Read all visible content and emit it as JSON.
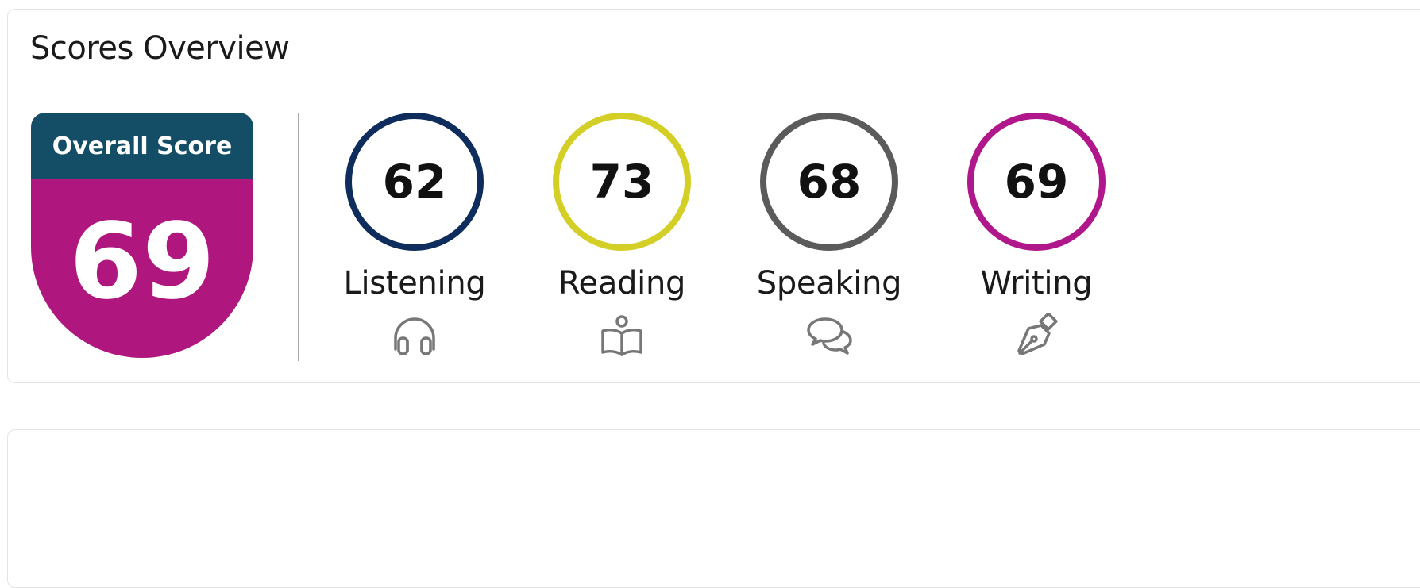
{
  "card": {
    "title": "Scores Overview"
  },
  "overall": {
    "label": "Overall Score",
    "value": "69",
    "header_color": "#144e66",
    "body_color": "#b0177e"
  },
  "skills": [
    {
      "label": "Listening",
      "score": "62",
      "ring_color": "#0f2d5c",
      "icon": "headphones-icon"
    },
    {
      "label": "Reading",
      "score": "73",
      "ring_color": "#d4cf26",
      "icon": "book-reader-icon"
    },
    {
      "label": "Speaking",
      "score": "68",
      "ring_color": "#5b5b5b",
      "icon": "chat-bubbles-icon"
    },
    {
      "label": "Writing",
      "score": "69",
      "ring_color": "#b0178a",
      "icon": "pen-nib-icon"
    }
  ]
}
